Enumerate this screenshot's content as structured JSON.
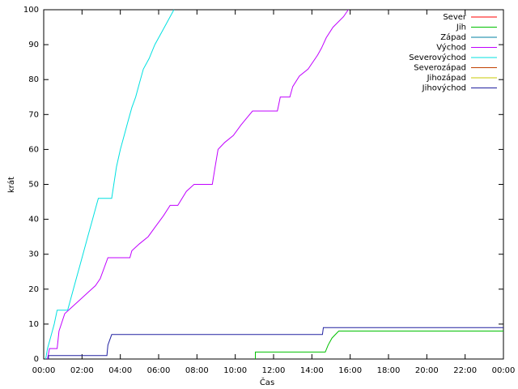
{
  "chart_data": {
    "type": "line",
    "title": null,
    "xlabel": "Čas",
    "ylabel": "krát",
    "xlim": [
      0,
      24
    ],
    "ylim": [
      0,
      100
    ],
    "xticks": [
      {
        "value": 0,
        "label": "00:00"
      },
      {
        "value": 2,
        "label": "02:00"
      },
      {
        "value": 4,
        "label": "04:00"
      },
      {
        "value": 6,
        "label": "06:00"
      },
      {
        "value": 8,
        "label": "08:00"
      },
      {
        "value": 10,
        "label": "10:00"
      },
      {
        "value": 12,
        "label": "12:00"
      },
      {
        "value": 14,
        "label": "14:00"
      },
      {
        "value": 16,
        "label": "16:00"
      },
      {
        "value": 18,
        "label": "18:00"
      },
      {
        "value": 20,
        "label": "20:00"
      },
      {
        "value": 22,
        "label": "22:00"
      },
      {
        "value": 24,
        "label": "00:00"
      }
    ],
    "yticks": [
      0,
      10,
      20,
      30,
      40,
      50,
      60,
      70,
      80,
      90,
      100
    ],
    "grid": false,
    "legend": "top-right",
    "series": [
      {
        "name": "Sever",
        "color": "#ff0000",
        "x": [],
        "values": []
      },
      {
        "name": "Jih",
        "color": "#00c000",
        "x": [
          11.05,
          11.05,
          14.7,
          14.85,
          15.05,
          15.4,
          24
        ],
        "values": [
          0,
          2,
          2,
          4,
          6,
          8,
          8
        ]
      },
      {
        "name": "Západ",
        "color": "#0080a0",
        "x": [],
        "values": []
      },
      {
        "name": "Východ",
        "color": "#c000ff",
        "x": [
          0.2,
          0.3,
          0.7,
          0.8,
          1.1,
          1.5,
          1.9,
          2.3,
          2.7,
          2.95,
          3.35,
          4.5,
          4.6,
          5.0,
          5.45,
          5.85,
          6.25,
          6.6,
          7.0,
          7.45,
          7.85,
          8.8,
          8.95,
          9.1,
          9.45,
          9.9,
          10.3,
          10.6,
          10.9,
          12.2,
          12.35,
          12.85,
          13.0,
          13.35,
          13.8,
          14.3,
          14.5,
          14.75,
          15.1,
          15.65,
          15.9
        ],
        "values": [
          0,
          3,
          3,
          8,
          13,
          15,
          17,
          19,
          21,
          23,
          29,
          29,
          31,
          33,
          35,
          38,
          41,
          44,
          44,
          48,
          50,
          50,
          55,
          60,
          62,
          64,
          67,
          69,
          71,
          71,
          75,
          75,
          78,
          81,
          83,
          87,
          89,
          92,
          95,
          98,
          100
        ]
      },
      {
        "name": "Severovýchod",
        "color": "#00e0e0",
        "x": [
          0.1,
          0.2,
          0.4,
          0.55,
          0.7,
          1.25,
          1.5,
          1.7,
          1.9,
          2.1,
          2.3,
          2.5,
          2.7,
          2.85,
          3.55,
          3.8,
          4.0,
          4.2,
          4.4,
          4.6,
          4.8,
          5.0,
          5.2,
          5.5,
          5.8,
          6.1,
          6.4,
          6.8
        ],
        "values": [
          0,
          3,
          7,
          10,
          14,
          14,
          19,
          23,
          27,
          31,
          35,
          39,
          43,
          46,
          46,
          55,
          60,
          64,
          68,
          72,
          75,
          79,
          83,
          86,
          90,
          93,
          96,
          100
        ]
      },
      {
        "name": "Severozápad",
        "color": "#c04000",
        "x": [],
        "values": []
      },
      {
        "name": "Jihozápad",
        "color": "#c8c800",
        "x": [],
        "values": []
      },
      {
        "name": "Jihovýchod",
        "color": "#2020a0",
        "x": [
          0.25,
          0.25,
          3.3,
          3.35,
          3.55,
          14.55,
          14.6,
          24
        ],
        "values": [
          0,
          1,
          1,
          4,
          7,
          7,
          9,
          9
        ]
      }
    ]
  }
}
